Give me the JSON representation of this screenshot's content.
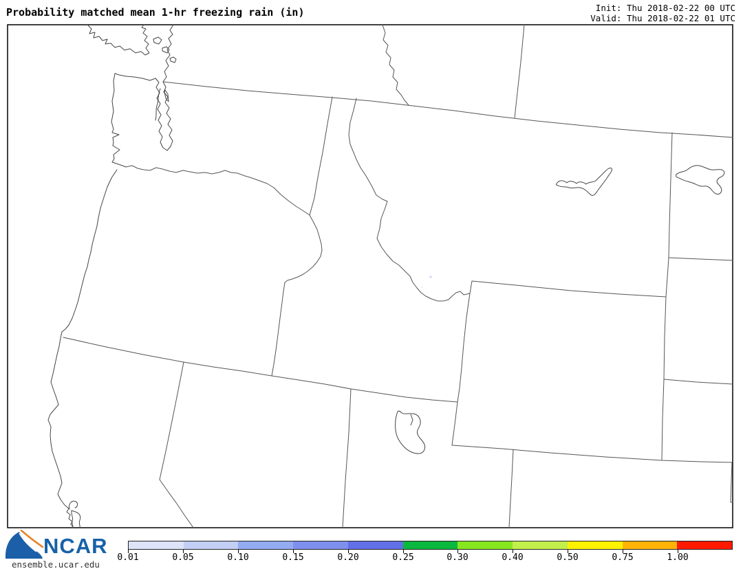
{
  "header": {
    "title": "Probability matched mean 1-hr freezing rain (in)",
    "init_label": "Init: Thu 2018-02-22 00 UTC",
    "valid_label": "Valid: Thu 2018-02-22 01 UTC"
  },
  "map": {
    "background_color": "#ffffff",
    "border_line_color": "#555555",
    "coast_line_color": "#444444",
    "frame_color": "#000000",
    "precip_speck_color": "#c9d7f3"
  },
  "colorbar": {
    "tick_labels": [
      "0.01",
      "0.05",
      "0.10",
      "0.15",
      "0.20",
      "0.25",
      "0.30",
      "0.40",
      "0.50",
      "0.75",
      "1.00"
    ],
    "segment_colors": [
      "#dde3f8",
      "#c2cef5",
      "#93abf2",
      "#7e90ee",
      "#6270e8",
      "#0ab83e",
      "#87e71e",
      "#c3ef4c",
      "#fff200",
      "#ffb405",
      "#ff1a00"
    ],
    "outline_color": "#222222"
  },
  "footer": {
    "logo_text": "NCAR",
    "site_text": "ensemble.ucar.edu",
    "logo_blue": "#1b5fa8",
    "logo_orange": "#e8832a",
    "logo_text_color": "#1762a8"
  }
}
